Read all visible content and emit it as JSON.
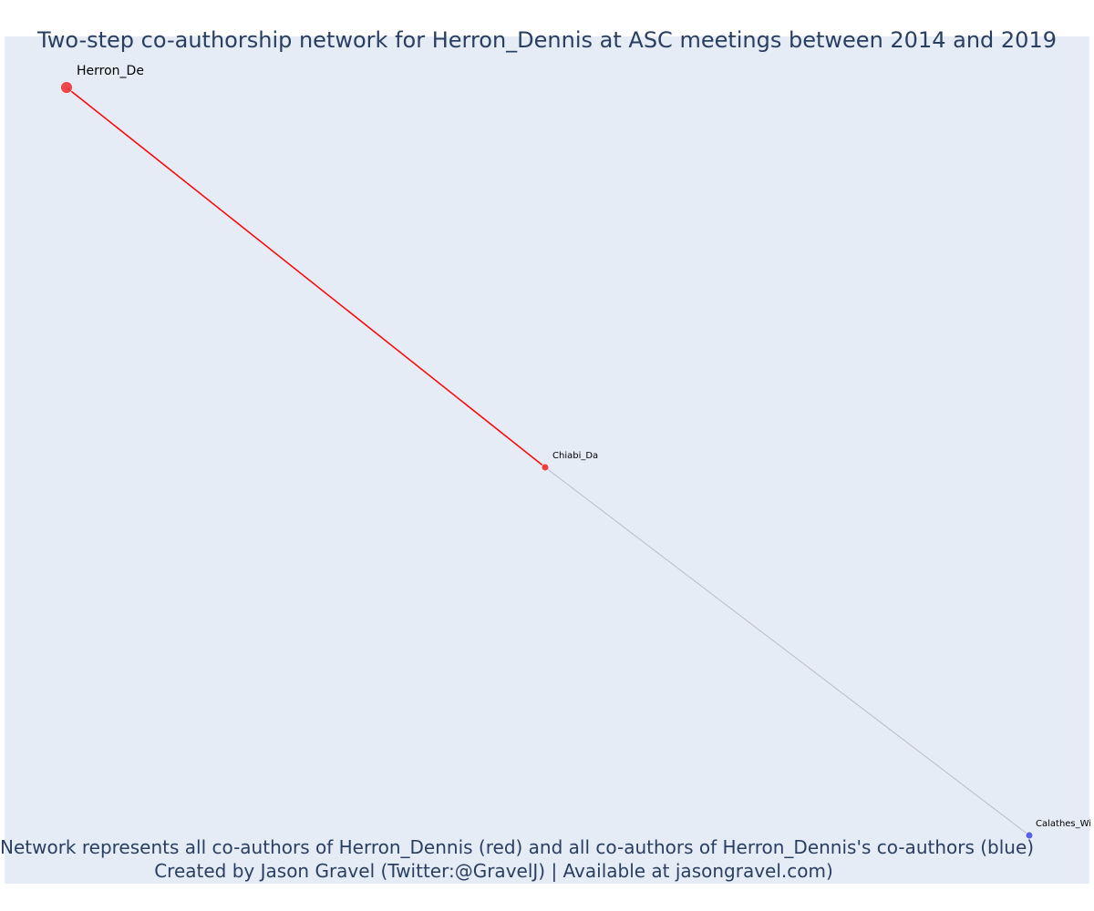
{
  "title": "Two-step co-authorship network for Herron_Dennis at ASC meetings between 2014 and 2019",
  "caption_line1": "Network represents all co-authors of Herron_Dennis (red) and all co-authors of Herron_Dennis's co-authors (blue)",
  "caption_line2": "Created by Jason Gravel (Twitter:@GravelJ) | Available at jasongravel.com)",
  "colors": {
    "background": "#e5ecf6",
    "focal": "#f0373c",
    "coauthor": "#ee3333",
    "second_step": "#4a55e8",
    "focal_edge": "#ff0000",
    "other_edge": "#b8bccc"
  },
  "nodes": [
    {
      "id": "Herron_De",
      "label": "Herron_De",
      "group": "focal"
    },
    {
      "id": "Chiabi_Da",
      "label": "Chiabi_Da",
      "group": "coauthor"
    },
    {
      "id": "Calathes_Wi",
      "label": "Calathes_Wi",
      "group": "second_step"
    }
  ],
  "edges": [
    {
      "source": "Herron_De",
      "target": "Chiabi_Da",
      "type": "focal"
    },
    {
      "source": "Chiabi_Da",
      "target": "Calathes_Wi",
      "type": "other"
    }
  ]
}
